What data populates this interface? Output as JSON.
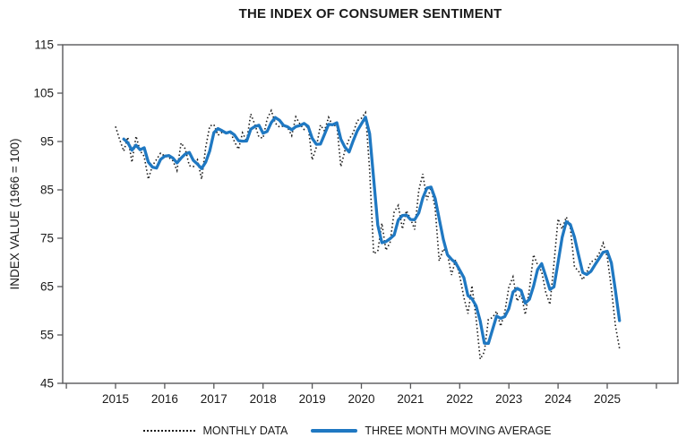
{
  "chart_data": {
    "type": "line",
    "title": "THE INDEX OF CONSUMER SENTIMENT",
    "xlabel": "",
    "ylabel": "INDEX VALUE (1966 = 100)",
    "ylim": [
      45,
      115
    ],
    "yticks": [
      45,
      55,
      65,
      75,
      85,
      95,
      105,
      115
    ],
    "xticks": [
      2015,
      2016,
      2017,
      2018,
      2019,
      2020,
      2021,
      2022,
      2023,
      2024,
      2025
    ],
    "x_start_month": "2015-01",
    "x_end_month": "2025-04",
    "grid": false,
    "legend_position": "bottom",
    "series": [
      {
        "name": "MONTHLY DATA",
        "style": "dotted",
        "color": "#1a1a1a",
        "values": [
          98.1,
          95.4,
          93.0,
          95.9,
          90.7,
          96.1,
          93.1,
          91.9,
          87.2,
          90.0,
          91.3,
          92.6,
          92.0,
          91.7,
          91.0,
          89.0,
          94.7,
          93.5,
          90.0,
          89.8,
          91.2,
          87.2,
          93.8,
          98.2,
          98.5,
          96.3,
          96.9,
          97.0,
          97.1,
          95.0,
          93.4,
          96.8,
          95.1,
          100.7,
          98.5,
          95.9,
          95.7,
          99.7,
          101.4,
          98.8,
          98.0,
          98.2,
          97.9,
          96.2,
          100.1,
          98.6,
          97.5,
          98.3,
          91.2,
          93.8,
          98.4,
          97.2,
          100.0,
          98.2,
          98.4,
          89.8,
          93.2,
          95.5,
          96.8,
          99.3,
          99.8,
          101.0,
          89.1,
          71.8,
          72.3,
          78.1,
          72.5,
          74.1,
          80.4,
          81.8,
          76.9,
          80.7,
          79.0,
          76.8,
          84.9,
          88.3,
          82.9,
          85.5,
          81.2,
          70.3,
          72.8,
          71.7,
          67.4,
          70.6,
          67.2,
          62.8,
          59.4,
          65.2,
          58.4,
          50.0,
          51.5,
          58.2,
          58.6,
          59.9,
          56.8,
          59.7,
          64.9,
          67.0,
          62.0,
          63.5,
          59.2,
          64.4,
          71.6,
          69.5,
          68.1,
          63.8,
          61.3,
          69.7,
          79.0,
          76.9,
          79.4,
          77.2,
          69.1,
          68.2,
          66.4,
          67.9,
          70.1,
          70.5,
          71.8,
          74.0,
          71.1,
          64.7,
          57.0,
          52.2
        ]
      },
      {
        "name": "THREE MONTH MOVING AVERAGE",
        "style": "solid",
        "color": "#1f78c2",
        "derived_from": "MONTHLY DATA",
        "window": 3
      }
    ]
  }
}
